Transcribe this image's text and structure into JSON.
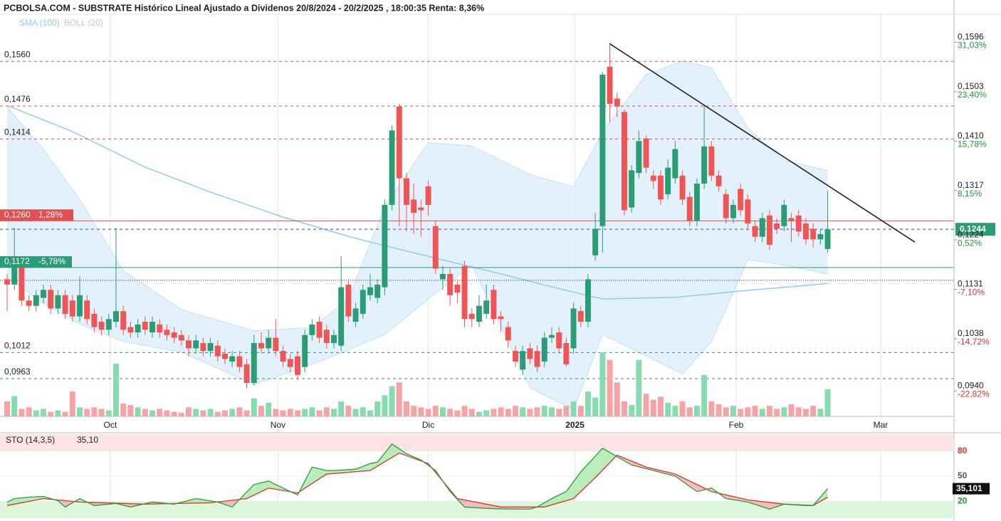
{
  "chart_data": {
    "type": "candlestick",
    "title": "PCBOLSA.COM - SUBSTRATE Histórico Lineal Ajustado a Dividenos 20/8/2024 - 20/2/2025 , 18:00:35 Renta: 8,36%",
    "legend": [
      {
        "name": "SMA (100)",
        "color": "#8ecdf0"
      },
      {
        "name": "BOLL (20)",
        "color": "#c8c8c8"
      }
    ],
    "up_color": "#2a9d74",
    "down_color": "#f05454",
    "volume_up_color": "#86dcb0",
    "volume_down_color": "#f7a3a3",
    "xlim": [
      -0.98,
      130.4
    ],
    "ylim": [
      0.0892,
      0.1642
    ],
    "xlabels": [
      {
        "label": "Oct",
        "index": 14.2,
        "bold": false
      },
      {
        "label": "Nov",
        "index": 37.3,
        "bold": false
      },
      {
        "label": "Dic",
        "index": 58.0,
        "bold": false
      },
      {
        "label": "2025",
        "index": 78.2,
        "bold": true
      },
      {
        "label": "Feb",
        "index": 100.4,
        "bold": false
      },
      {
        "label": "Mar",
        "index": 120.3,
        "bold": false
      }
    ],
    "yticks": [
      {
        "value": 0.1596,
        "label": "0,1596"
      },
      {
        "value": 0.1503,
        "label": "0,1503"
      },
      {
        "value": 0.141,
        "label": "0,1410"
      },
      {
        "value": 0.1317,
        "label": "0,1317"
      },
      {
        "value": 0.1224,
        "label": "0,1224"
      },
      {
        "value": 0.1131,
        "label": "0,1131"
      },
      {
        "value": 0.1038,
        "label": "0,1038"
      },
      {
        "value": 0.094,
        "label": "0,0940"
      }
    ],
    "ytick_returns": [
      "31,03%",
      "23,40%",
      "15,78%",
      "8,15%",
      "0,52%",
      "-7,10%",
      "-14,72%",
      "-22,82%"
    ],
    "candles": [
      [
        0.115,
        0.116,
        0.109,
        0.114
      ],
      [
        0.114,
        0.1247,
        0.113,
        0.1175
      ],
      [
        0.1175,
        0.1185,
        0.11,
        0.111
      ],
      [
        0.111,
        0.112,
        0.109,
        0.11
      ],
      [
        0.11,
        0.113,
        0.109,
        0.112
      ],
      [
        0.1115,
        0.114,
        0.1105,
        0.113
      ],
      [
        0.113,
        0.114,
        0.1085,
        0.1095
      ],
      [
        0.1095,
        0.113,
        0.1085,
        0.112
      ],
      [
        0.112,
        0.113,
        0.1075,
        0.1085
      ],
      [
        0.111,
        0.112,
        0.107,
        0.108
      ],
      [
        0.108,
        0.1155,
        0.107,
        0.112
      ],
      [
        0.111,
        0.112,
        0.1065,
        0.1075
      ],
      [
        0.1085,
        0.1095,
        0.105,
        0.106
      ],
      [
        0.107,
        0.108,
        0.1045,
        0.1055
      ],
      [
        0.1055,
        0.1085,
        0.1045,
        0.1075
      ],
      [
        0.107,
        0.1247,
        0.106,
        0.109
      ],
      [
        0.109,
        0.11,
        0.1045,
        0.1055
      ],
      [
        0.106,
        0.107,
        0.104,
        0.105
      ],
      [
        0.105,
        0.1075,
        0.104,
        0.1065
      ],
      [
        0.107,
        0.108,
        0.1045,
        0.1055
      ],
      [
        0.105,
        0.108,
        0.104,
        0.107
      ],
      [
        0.1065,
        0.1075,
        0.104,
        0.105
      ],
      [
        0.1055,
        0.1065,
        0.1035,
        0.1045
      ],
      [
        0.105,
        0.106,
        0.103,
        0.104
      ],
      [
        0.1045,
        0.1055,
        0.1025,
        0.1035
      ],
      [
        0.1035,
        0.1045,
        0.1005,
        0.102
      ],
      [
        0.102,
        0.1045,
        0.101,
        0.1035
      ],
      [
        0.103,
        0.104,
        0.1005,
        0.1015
      ],
      [
        0.1015,
        0.104,
        0.1005,
        0.103
      ],
      [
        0.1025,
        0.1035,
        0.0995,
        0.1005
      ],
      [
        0.101,
        0.102,
        0.099,
        0.1
      ],
      [
        0.0995,
        0.1015,
        0.0985,
        0.1005
      ],
      [
        0.1005,
        0.1015,
        0.0975,
        0.0985
      ],
      [
        0.099,
        0.1,
        0.0945,
        0.0955
      ],
      [
        0.0955,
        0.1045,
        0.095,
        0.103
      ],
      [
        0.103,
        0.105,
        0.101,
        0.102
      ],
      [
        0.102,
        0.1055,
        0.101,
        0.104
      ],
      [
        0.104,
        0.1075,
        0.1005,
        0.1015
      ],
      [
        0.1015,
        0.1025,
        0.0985,
        0.0995
      ],
      [
        0.1,
        0.101,
        0.0975,
        0.0985
      ],
      [
        0.1005,
        0.1015,
        0.096,
        0.097
      ],
      [
        0.0985,
        0.1055,
        0.0975,
        0.1045
      ],
      [
        0.1045,
        0.1075,
        0.1035,
        0.1065
      ],
      [
        0.107,
        0.108,
        0.103,
        0.104
      ],
      [
        0.1055,
        0.1065,
        0.102,
        0.103
      ],
      [
        0.103,
        0.1055,
        0.102,
        0.1045
      ],
      [
        0.1025,
        0.1193,
        0.1015,
        0.1135
      ],
      [
        0.114,
        0.115,
        0.107,
        0.108
      ],
      [
        0.107,
        0.1105,
        0.106,
        0.1095
      ],
      [
        0.1085,
        0.114,
        0.1075,
        0.113
      ],
      [
        0.112,
        0.116,
        0.111,
        0.1135
      ],
      [
        0.1115,
        0.115,
        0.1105,
        0.114
      ],
      [
        0.1135,
        0.13,
        0.112,
        0.129
      ],
      [
        0.129,
        0.144,
        0.128,
        0.143
      ],
      [
        0.1475,
        0.148,
        0.125,
        0.134
      ],
      [
        0.134,
        0.135,
        0.124,
        0.129
      ],
      [
        0.13,
        0.133,
        0.1235,
        0.1275
      ],
      [
        0.1285,
        0.13,
        0.123,
        0.128
      ],
      [
        0.1325,
        0.1335,
        0.127,
        0.129
      ],
      [
        0.125,
        0.126,
        0.116,
        0.117
      ],
      [
        0.115,
        0.1175,
        0.113,
        0.116
      ],
      [
        0.116,
        0.117,
        0.11,
        0.112
      ],
      [
        0.114,
        0.115,
        0.1105,
        0.1125
      ],
      [
        0.1175,
        0.1185,
        0.106,
        0.1075
      ],
      [
        0.1085,
        0.1095,
        0.106,
        0.1075
      ],
      [
        0.107,
        0.112,
        0.106,
        0.11
      ],
      [
        0.1085,
        0.114,
        0.1075,
        0.111
      ],
      [
        0.113,
        0.114,
        0.1065,
        0.1075
      ],
      [
        0.108,
        0.109,
        0.105,
        0.1075
      ],
      [
        0.106,
        0.107,
        0.102,
        0.1035
      ],
      [
        0.1015,
        0.1025,
        0.0985,
        0.0995
      ],
      [
        0.098,
        0.1025,
        0.097,
        0.1015
      ],
      [
        0.102,
        0.103,
        0.099,
        0.1
      ],
      [
        0.1015,
        0.1025,
        0.0975,
        0.0985
      ],
      [
        0.0995,
        0.105,
        0.0985,
        0.104
      ],
      [
        0.104,
        0.106,
        0.103,
        0.1045
      ],
      [
        0.105,
        0.106,
        0.101,
        0.102
      ],
      [
        0.103,
        0.104,
        0.0985,
        0.099
      ],
      [
        0.102,
        0.1105,
        0.101,
        0.1095
      ],
      [
        0.109,
        0.11,
        0.106,
        0.107
      ],
      [
        0.107,
        0.116,
        0.106,
        0.115
      ],
      [
        0.1195,
        0.1275,
        0.1185,
        0.1245
      ],
      [
        0.125,
        0.154,
        0.12,
        0.1535
      ],
      [
        0.155,
        0.1595,
        0.1445,
        0.148
      ],
      [
        0.149,
        0.15,
        0.1455,
        0.1475
      ],
      [
        0.1465,
        0.147,
        0.127,
        0.128
      ],
      [
        0.1285,
        0.1365,
        0.1275,
        0.1355
      ],
      [
        0.135,
        0.143,
        0.134,
        0.141
      ],
      [
        0.1415,
        0.142,
        0.135,
        0.136
      ],
      [
        0.1345,
        0.1355,
        0.132,
        0.1335
      ],
      [
        0.1345,
        0.1355,
        0.129,
        0.13
      ],
      [
        0.131,
        0.1375,
        0.13,
        0.136
      ],
      [
        0.134,
        0.141,
        0.133,
        0.1395
      ],
      [
        0.1345,
        0.1355,
        0.129,
        0.13
      ],
      [
        0.1305,
        0.1315,
        0.125,
        0.126
      ],
      [
        0.126,
        0.134,
        0.125,
        0.133
      ],
      [
        0.133,
        0.1477,
        0.132,
        0.14
      ],
      [
        0.14,
        0.141,
        0.1335,
        0.1345
      ],
      [
        0.1345,
        0.1355,
        0.1315,
        0.1325
      ],
      [
        0.131,
        0.132,
        0.1255,
        0.1265
      ],
      [
        0.1265,
        0.13,
        0.1255,
        0.129
      ],
      [
        0.132,
        0.133,
        0.127,
        0.128
      ],
      [
        0.13,
        0.131,
        0.1245,
        0.1255
      ],
      [
        0.125,
        0.126,
        0.122,
        0.123
      ],
      [
        0.123,
        0.1275,
        0.122,
        0.1265
      ],
      [
        0.127,
        0.128,
        0.1205,
        0.1215
      ],
      [
        0.1255,
        0.1265,
        0.1235,
        0.1245
      ],
      [
        0.125,
        0.13,
        0.124,
        0.129
      ],
      [
        0.1265,
        0.1275,
        0.122,
        0.126
      ],
      [
        0.127,
        0.128,
        0.123,
        0.124
      ],
      [
        0.1255,
        0.1265,
        0.1215,
        0.1225
      ],
      [
        0.1245,
        0.1255,
        0.121,
        0.1225
      ],
      [
        0.1225,
        0.1245,
        0.1215,
        0.1235
      ],
      [
        0.1207,
        0.1317,
        0.12,
        0.1244
      ]
    ],
    "volume": [
      20,
      27,
      10,
      12,
      8,
      10,
      6,
      8,
      6,
      33,
      12,
      10,
      12,
      10,
      8,
      70,
      17,
      15,
      12,
      10,
      8,
      10,
      8,
      6,
      5,
      12,
      10,
      8,
      10,
      6,
      8,
      10,
      12,
      8,
      24,
      14,
      18,
      10,
      8,
      10,
      8,
      10,
      12,
      8,
      12,
      10,
      20,
      14,
      10,
      12,
      8,
      20,
      28,
      40,
      45,
      20,
      14,
      12,
      10,
      14,
      12,
      10,
      8,
      14,
      10,
      6,
      8,
      10,
      12,
      10,
      14,
      12,
      10,
      12,
      14,
      12,
      10,
      14,
      20,
      14,
      33,
      25,
      85,
      75,
      45,
      20,
      15,
      75,
      30,
      22,
      26,
      18,
      14,
      20,
      12,
      14,
      55,
      20,
      16,
      12,
      14,
      10,
      12,
      14,
      10,
      14,
      10,
      12,
      16,
      12,
      10,
      14,
      10,
      36
    ],
    "sma": {
      "index": [
        0,
        9,
        19,
        28,
        38,
        48,
        58,
        68,
        77,
        82,
        92,
        102,
        113
      ],
      "values": [
        0.1477,
        0.1428,
        0.1361,
        0.1314,
        0.1267,
        0.1227,
        0.1193,
        0.116,
        0.1129,
        0.1113,
        0.1116,
        0.1129,
        0.1142
      ]
    },
    "bollinger": {
      "index": [
        0,
        5,
        10,
        16,
        24,
        34,
        42,
        47,
        52,
        58,
        64,
        72,
        78,
        82,
        88,
        93,
        97,
        102,
        107,
        113
      ],
      "upper": [
        0.1474,
        0.1394,
        0.13,
        0.1166,
        0.1093,
        0.1053,
        0.1059,
        0.1113,
        0.1287,
        0.1407,
        0.1401,
        0.1347,
        0.1324,
        0.1427,
        0.1535,
        0.1561,
        0.1548,
        0.1434,
        0.1374,
        0.1354
      ],
      "lower": [
        0.1153,
        0.1105,
        0.1066,
        0.1033,
        0.1013,
        0.0952,
        0.099,
        0.1017,
        0.1046,
        0.1113,
        0.1177,
        0.0946,
        0.0905,
        0.1046,
        0.1006,
        0.0972,
        0.1033,
        0.1187,
        0.1177,
        0.116
      ]
    },
    "trendline": {
      "index": [
        83,
        125
      ],
      "values": [
        0.1593,
        0.122
      ]
    },
    "levels": [
      {
        "value": 0.156,
        "label": "0,1560",
        "style": "dashed",
        "color": "#e05050"
      },
      {
        "value": 0.1476,
        "label": "0,1476",
        "style": "dashed",
        "color": "#e05050"
      },
      {
        "value": 0.1414,
        "label": "0,1414",
        "style": "dashed",
        "color": "#e05050"
      },
      {
        "value": 0.126,
        "label": "0,1260",
        "change": "1,28%",
        "style": "solid",
        "color": "#e05050",
        "boxed": true
      },
      {
        "value": 0.1244,
        "label": "0,1244",
        "style": "dashed",
        "color": "#3040d0",
        "right_box": "#2a9d74"
      },
      {
        "value": 0.1172,
        "label": "0,1172",
        "change": "-5,78%",
        "style": "solid",
        "color": "#2a9d74",
        "boxed": true
      },
      {
        "value": 0.1148,
        "style": "dotted",
        "color": "#222222"
      },
      {
        "value": 0.1012,
        "label": "0,1012",
        "style": "dashed",
        "color": "#2a9d74"
      },
      {
        "value": 0.0963,
        "label": "0,0963",
        "style": "dashed",
        "color": "#2a9d74"
      }
    ],
    "stochastic": {
      "title": "STO (14,3,5)",
      "value_label": "35,10",
      "current_label": "35,101",
      "ylim": [
        0,
        100
      ],
      "yticks": [
        20,
        50,
        80
      ],
      "bands": [
        {
          "from": 80,
          "to": 100,
          "color": "#fde3e3",
          "text_color": "#e03030"
        },
        {
          "from": 0,
          "to": 20,
          "color": "#dcf7dc",
          "text_color": "#1d9a3a"
        }
      ],
      "k": {
        "color": "#2a9d3a",
        "index": [
          0,
          1,
          3,
          5,
          7,
          8,
          10,
          12,
          15,
          17,
          20,
          23,
          26,
          29,
          31,
          34,
          36,
          39,
          40,
          42,
          44,
          45,
          48,
          50,
          51,
          53,
          55,
          57,
          59,
          61,
          63,
          66,
          69,
          72,
          73,
          75,
          77,
          79,
          82,
          84,
          86,
          89,
          92,
          95,
          97,
          99,
          102,
          105,
          107,
          110,
          111,
          113
        ],
        "values": [
          19.2,
          23.3,
          25,
          25.8,
          20.8,
          13.3,
          23.3,
          15,
          17.5,
          13.3,
          19.2,
          16.7,
          23.3,
          19.2,
          13.3,
          40,
          44.2,
          31.7,
          27.5,
          60.8,
          56.7,
          56.7,
          58.3,
          65,
          66.7,
          88.3,
          76.7,
          69.2,
          56.7,
          31.7,
          13.3,
          11.7,
          10.8,
          10.8,
          13.3,
          23.3,
          31.7,
          55,
          83.3,
          73.3,
          63.3,
          56.7,
          50,
          31.7,
          35.8,
          23.3,
          19.2,
          10.8,
          16.7,
          15,
          15,
          35.101
        ]
      },
      "d": {
        "color": "#e03030",
        "index": [
          0,
          5,
          10,
          19,
          28,
          33,
          36,
          40,
          44,
          50,
          54,
          58,
          62,
          68,
          74,
          78,
          81,
          84,
          88,
          92,
          97,
          102,
          107,
          111,
          113
        ],
        "values": [
          15,
          23.3,
          19.2,
          16.7,
          18.3,
          23.3,
          35.8,
          30,
          52.5,
          56.7,
          77.5,
          65,
          23.3,
          13.3,
          13.3,
          23.3,
          48.3,
          75,
          60.8,
          52.5,
          31.7,
          21.7,
          16.7,
          15,
          25
        ]
      }
    }
  }
}
